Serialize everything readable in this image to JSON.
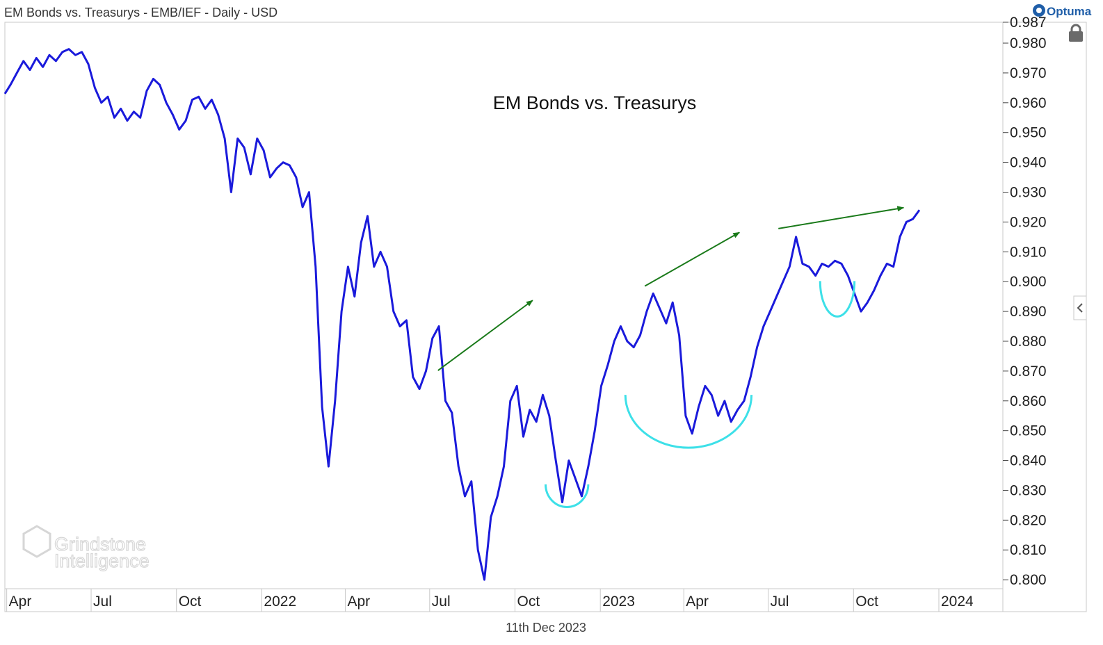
{
  "header": {
    "text": "EM Bonds vs. Treasurys - EMB/IEF - Daily - USD"
  },
  "brand": {
    "name": "Optuma"
  },
  "footer": {
    "date": "11th Dec 2023"
  },
  "watermark": {
    "line1": "Grindstone",
    "line2": "Intelligence"
  },
  "colors": {
    "series": "#1a1adb",
    "arrow": "#1a7a1a",
    "arc": "#3de0e8",
    "grid": "#e4e4e4"
  },
  "icons": {
    "lock": "lock-icon",
    "collapse": "chevron-left-icon"
  },
  "chart_data": {
    "type": "line",
    "title": "EM Bonds vs. Treasurys",
    "xlabel": "",
    "ylabel": "",
    "ylim": [
      0.797,
      0.987
    ],
    "xlim": [
      "2021-03-30",
      "2024-03-10"
    ],
    "y_ticks": [
      0.987,
      0.98,
      0.97,
      0.96,
      0.95,
      0.94,
      0.93,
      0.92,
      0.91,
      0.9,
      0.89,
      0.88,
      0.87,
      0.86,
      0.85,
      0.84,
      0.83,
      0.82,
      0.81,
      0.8
    ],
    "y_tick_labels": [
      "0.987",
      "0.980",
      "0.970",
      "0.960",
      "0.950",
      "0.940",
      "0.930",
      "0.920",
      "0.910",
      "0.900",
      "0.890",
      "0.880",
      "0.870",
      "0.860",
      "0.850",
      "0.840",
      "0.830",
      "0.820",
      "0.810",
      "0.800"
    ],
    "x_ticks": [
      {
        "label": "Apr",
        "date": "2021-04-01"
      },
      {
        "label": "Jul",
        "date": "2021-07-01"
      },
      {
        "label": "Oct",
        "date": "2021-10-01"
      },
      {
        "label": "2022",
        "date": "2022-01-01"
      },
      {
        "label": "Apr",
        "date": "2022-04-01"
      },
      {
        "label": "Jul",
        "date": "2022-07-01"
      },
      {
        "label": "Oct",
        "date": "2022-10-01"
      },
      {
        "label": "2023",
        "date": "2023-01-01"
      },
      {
        "label": "Apr",
        "date": "2023-04-01"
      },
      {
        "label": "Jul",
        "date": "2023-07-01"
      },
      {
        "label": "Oct",
        "date": "2023-10-01"
      },
      {
        "label": "2024",
        "date": "2024-01-01"
      }
    ],
    "series": [
      {
        "points": [
          [
            "2021-03-30",
            0.963
          ],
          [
            "2021-04-05",
            0.966
          ],
          [
            "2021-04-12",
            0.97
          ],
          [
            "2021-04-19",
            0.974
          ],
          [
            "2021-04-26",
            0.971
          ],
          [
            "2021-05-03",
            0.975
          ],
          [
            "2021-05-10",
            0.972
          ],
          [
            "2021-05-17",
            0.976
          ],
          [
            "2021-05-24",
            0.974
          ],
          [
            "2021-05-31",
            0.977
          ],
          [
            "2021-06-07",
            0.978
          ],
          [
            "2021-06-14",
            0.976
          ],
          [
            "2021-06-21",
            0.977
          ],
          [
            "2021-06-28",
            0.973
          ],
          [
            "2021-07-05",
            0.965
          ],
          [
            "2021-07-12",
            0.96
          ],
          [
            "2021-07-19",
            0.962
          ],
          [
            "2021-07-26",
            0.955
          ],
          [
            "2021-08-02",
            0.958
          ],
          [
            "2021-08-09",
            0.954
          ],
          [
            "2021-08-16",
            0.957
          ],
          [
            "2021-08-23",
            0.955
          ],
          [
            "2021-08-30",
            0.964
          ],
          [
            "2021-09-06",
            0.968
          ],
          [
            "2021-09-13",
            0.966
          ],
          [
            "2021-09-20",
            0.96
          ],
          [
            "2021-09-27",
            0.956
          ],
          [
            "2021-10-04",
            0.951
          ],
          [
            "2021-10-11",
            0.954
          ],
          [
            "2021-10-18",
            0.961
          ],
          [
            "2021-10-25",
            0.962
          ],
          [
            "2021-11-01",
            0.958
          ],
          [
            "2021-11-08",
            0.961
          ],
          [
            "2021-11-15",
            0.956
          ],
          [
            "2021-11-22",
            0.948
          ],
          [
            "2021-11-29",
            0.93
          ],
          [
            "2021-12-06",
            0.948
          ],
          [
            "2021-12-13",
            0.945
          ],
          [
            "2021-12-20",
            0.936
          ],
          [
            "2021-12-27",
            0.948
          ],
          [
            "2022-01-03",
            0.944
          ],
          [
            "2022-01-10",
            0.935
          ],
          [
            "2022-01-17",
            0.938
          ],
          [
            "2022-01-24",
            0.94
          ],
          [
            "2022-01-31",
            0.939
          ],
          [
            "2022-02-07",
            0.935
          ],
          [
            "2022-02-14",
            0.925
          ],
          [
            "2022-02-21",
            0.93
          ],
          [
            "2022-02-28",
            0.905
          ],
          [
            "2022-03-07",
            0.858
          ],
          [
            "2022-03-14",
            0.838
          ],
          [
            "2022-03-21",
            0.86
          ],
          [
            "2022-03-28",
            0.89
          ],
          [
            "2022-04-04",
            0.905
          ],
          [
            "2022-04-11",
            0.895
          ],
          [
            "2022-04-18",
            0.913
          ],
          [
            "2022-04-25",
            0.922
          ],
          [
            "2022-05-02",
            0.905
          ],
          [
            "2022-05-09",
            0.91
          ],
          [
            "2022-05-16",
            0.905
          ],
          [
            "2022-05-23",
            0.89
          ],
          [
            "2022-05-30",
            0.885
          ],
          [
            "2022-06-06",
            0.887
          ],
          [
            "2022-06-13",
            0.868
          ],
          [
            "2022-06-20",
            0.864
          ],
          [
            "2022-06-27",
            0.87
          ],
          [
            "2022-07-04",
            0.881
          ],
          [
            "2022-07-11",
            0.885
          ],
          [
            "2022-07-18",
            0.86
          ],
          [
            "2022-07-25",
            0.856
          ],
          [
            "2022-08-01",
            0.838
          ],
          [
            "2022-08-08",
            0.828
          ],
          [
            "2022-08-15",
            0.833
          ],
          [
            "2022-08-22",
            0.81
          ],
          [
            "2022-08-29",
            0.8
          ],
          [
            "2022-09-05",
            0.821
          ],
          [
            "2022-09-12",
            0.828
          ],
          [
            "2022-09-19",
            0.838
          ],
          [
            "2022-09-26",
            0.86
          ],
          [
            "2022-10-03",
            0.865
          ],
          [
            "2022-10-10",
            0.848
          ],
          [
            "2022-10-17",
            0.857
          ],
          [
            "2022-10-24",
            0.853
          ],
          [
            "2022-10-31",
            0.862
          ],
          [
            "2022-11-07",
            0.855
          ],
          [
            "2022-11-14",
            0.84
          ],
          [
            "2022-11-21",
            0.826
          ],
          [
            "2022-11-28",
            0.84
          ],
          [
            "2022-12-05",
            0.834
          ],
          [
            "2022-12-12",
            0.828
          ],
          [
            "2022-12-19",
            0.838
          ],
          [
            "2022-12-26",
            0.85
          ],
          [
            "2023-01-02",
            0.865
          ],
          [
            "2023-01-09",
            0.872
          ],
          [
            "2023-01-16",
            0.88
          ],
          [
            "2023-01-23",
            0.885
          ],
          [
            "2023-01-30",
            0.88
          ],
          [
            "2023-02-06",
            0.878
          ],
          [
            "2023-02-13",
            0.882
          ],
          [
            "2023-02-20",
            0.89
          ],
          [
            "2023-02-27",
            0.896
          ],
          [
            "2023-03-06",
            0.891
          ],
          [
            "2023-03-13",
            0.886
          ],
          [
            "2023-03-20",
            0.893
          ],
          [
            "2023-03-27",
            0.882
          ],
          [
            "2023-04-03",
            0.855
          ],
          [
            "2023-04-10",
            0.849
          ],
          [
            "2023-04-17",
            0.858
          ],
          [
            "2023-04-24",
            0.865
          ],
          [
            "2023-05-01",
            0.862
          ],
          [
            "2023-05-08",
            0.855
          ],
          [
            "2023-05-15",
            0.86
          ],
          [
            "2023-05-22",
            0.853
          ],
          [
            "2023-05-29",
            0.857
          ],
          [
            "2023-06-05",
            0.86
          ],
          [
            "2023-06-12",
            0.868
          ],
          [
            "2023-06-19",
            0.878
          ],
          [
            "2023-06-26",
            0.885
          ],
          [
            "2023-07-03",
            0.89
          ],
          [
            "2023-07-10",
            0.895
          ],
          [
            "2023-07-17",
            0.9
          ],
          [
            "2023-07-24",
            0.905
          ],
          [
            "2023-07-31",
            0.915
          ],
          [
            "2023-08-07",
            0.906
          ],
          [
            "2023-08-14",
            0.905
          ],
          [
            "2023-08-21",
            0.902
          ],
          [
            "2023-08-28",
            0.906
          ],
          [
            "2023-09-04",
            0.905
          ],
          [
            "2023-09-11",
            0.907
          ],
          [
            "2023-09-18",
            0.906
          ],
          [
            "2023-09-25",
            0.902
          ],
          [
            "2023-10-02",
            0.896
          ],
          [
            "2023-10-09",
            0.89
          ],
          [
            "2023-10-16",
            0.893
          ],
          [
            "2023-10-23",
            0.897
          ],
          [
            "2023-10-30",
            0.902
          ],
          [
            "2023-11-06",
            0.906
          ],
          [
            "2023-11-13",
            0.905
          ],
          [
            "2023-11-20",
            0.915
          ],
          [
            "2023-11-27",
            0.92
          ],
          [
            "2023-12-04",
            0.921
          ],
          [
            "2023-12-11",
            0.924
          ]
        ]
      }
    ],
    "annotations": {
      "arrows": [
        {
          "from": [
            "2022-07-10",
            0.8702
          ],
          "to": [
            "2022-10-20",
            0.8937
          ]
        },
        {
          "from": [
            "2023-02-18",
            0.8985
          ],
          "to": [
            "2023-05-31",
            0.9165
          ]
        },
        {
          "from": [
            "2023-07-12",
            0.9178
          ],
          "to": [
            "2023-11-24",
            0.9248
          ]
        }
      ],
      "arcs": [
        {
          "start": [
            "2022-11-03",
            0.832
          ],
          "end": [
            "2022-12-19",
            0.832
          ],
          "bottom": 0.8244
        },
        {
          "start": [
            "2023-01-28",
            0.862
          ],
          "end": [
            "2023-06-13",
            0.862
          ],
          "bottom": 0.8443
        },
        {
          "start": [
            "2023-08-26",
            0.9002
          ],
          "end": [
            "2023-10-02",
            0.9002
          ],
          "bottom": 0.8883
        }
      ]
    }
  }
}
